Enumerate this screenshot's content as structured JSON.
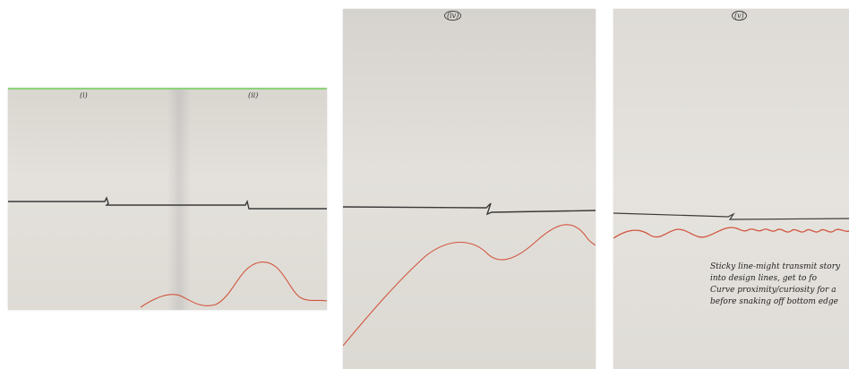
{
  "sheets": [
    {
      "labels": [
        "(i)",
        "(ii)"
      ]
    },
    {
      "label": "(iv)"
    },
    {
      "label": "(v)",
      "note_lines": [
        "Sticky line-might transmit story",
        "into design lines, get to fo",
        "Curve proximity/curiosity for a",
        "before snaking off bottom edge"
      ]
    }
  ],
  "colors": {
    "pencil_line": "#3a3a3a",
    "red_curve": "#d2553f"
  }
}
